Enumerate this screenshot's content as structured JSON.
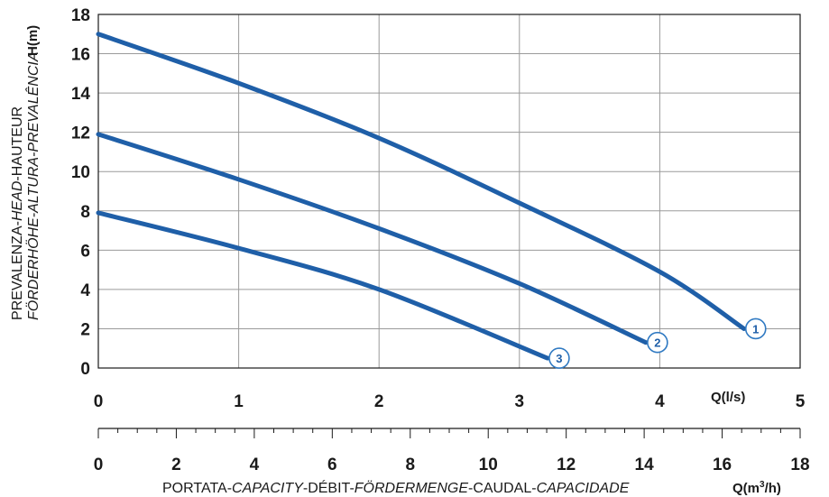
{
  "chart_data": {
    "type": "line",
    "y_axis": {
      "label_unit": "H(m)",
      "title_line1": "PREVALENZA-",
      "title_line1_it": "HEAD",
      "title_line1_end": "-HAUTEUR",
      "title_line2_it": "FÖRDERHÖHE-ALTURA-PREVALÊNCIA",
      "ylim": [
        0,
        18
      ],
      "ticks": [
        "0",
        "2",
        "4",
        "6",
        "8",
        "10",
        "12",
        "14",
        "16",
        "18"
      ]
    },
    "x_axis_primary": {
      "unit_label": "Q(l/s)",
      "xlim": [
        0,
        5
      ],
      "ticks": [
        "0",
        "1",
        "2",
        "3",
        "4",
        "5"
      ]
    },
    "x_axis_secondary": {
      "unit_label_main": "Q(m",
      "unit_label_sup": "3",
      "unit_label_end": "/h)",
      "xlim": [
        0,
        18
      ],
      "ticks": [
        "0",
        "2",
        "4",
        "6",
        "8",
        "10",
        "12",
        "14",
        "16",
        "18"
      ],
      "title_parts": [
        {
          "text": "PORTATA-",
          "italic": false
        },
        {
          "text": "CAPACITY",
          "italic": true
        },
        {
          "text": "-DÉBIT-",
          "italic": false
        },
        {
          "text": "FÖRDERMENGE",
          "italic": true
        },
        {
          "text": "-CAUDAL-",
          "italic": false
        },
        {
          "text": "CAPACIDADE",
          "italic": true
        }
      ]
    },
    "grid": true,
    "line_color": "#1f5fa8",
    "series": [
      {
        "badge": "1",
        "x": [
          0,
          1,
          2,
          3,
          4,
          4.6
        ],
        "y": [
          17.0,
          14.5,
          11.7,
          8.4,
          4.9,
          2.0
        ]
      },
      {
        "badge": "2",
        "x": [
          0,
          1,
          2,
          3,
          3.9
        ],
        "y": [
          11.9,
          9.6,
          7.1,
          4.3,
          1.3
        ]
      },
      {
        "badge": "3",
        "x": [
          0,
          1,
          2,
          3.2
        ],
        "y": [
          7.9,
          6.1,
          4.0,
          0.5
        ]
      }
    ]
  }
}
